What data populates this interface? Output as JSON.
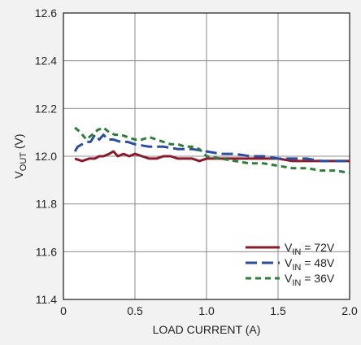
{
  "chart_data": {
    "type": "line",
    "title": "",
    "xlabel": "LOAD CURRENT (A)",
    "ylabel": {
      "main": "V",
      "sub": "OUT",
      "unit": " (V)"
    },
    "xlim": [
      0,
      2.0
    ],
    "ylim": [
      11.4,
      12.6
    ],
    "xticks": [
      {
        "value": 0,
        "label": "0"
      },
      {
        "value": 0.5,
        "label": "0.5"
      },
      {
        "value": 1.0,
        "label": "1.0"
      },
      {
        "value": 1.5,
        "label": "1.5"
      },
      {
        "value": 2.0,
        "label": "2.0"
      }
    ],
    "yticks": [
      {
        "value": 11.4,
        "label": "11.4"
      },
      {
        "value": 11.6,
        "label": "11.6"
      },
      {
        "value": 11.8,
        "label": "11.8"
      },
      {
        "value": 12.0,
        "label": "12.0"
      },
      {
        "value": 12.2,
        "label": "12.2"
      },
      {
        "value": 12.4,
        "label": "12.4"
      },
      {
        "value": 12.6,
        "label": "12.6"
      }
    ],
    "grid": true,
    "legend_position": "bottom-right",
    "series": [
      {
        "name": "VIN = 72V",
        "label_main": "V",
        "label_sub": "IN",
        "label_rest": " = 72V",
        "color": "#8b1a2b",
        "dash": "solid",
        "x": [
          0.08,
          0.13,
          0.18,
          0.22,
          0.25,
          0.28,
          0.32,
          0.35,
          0.38,
          0.42,
          0.46,
          0.5,
          0.55,
          0.6,
          0.65,
          0.7,
          0.75,
          0.8,
          0.85,
          0.9,
          0.95,
          1.0,
          1.1,
          1.2,
          1.3,
          1.4,
          1.5,
          1.6,
          1.7,
          1.8,
          1.9,
          2.0
        ],
        "y": [
          11.99,
          11.98,
          11.99,
          11.99,
          12.0,
          12.0,
          12.01,
          12.02,
          12.0,
          12.01,
          12.0,
          12.01,
          12.0,
          11.99,
          11.99,
          12.0,
          12.0,
          11.99,
          11.99,
          11.99,
          11.98,
          11.99,
          11.99,
          11.99,
          11.99,
          11.99,
          11.99,
          11.98,
          11.98,
          11.98,
          11.98,
          11.98
        ]
      },
      {
        "name": "VIN = 48V",
        "label_main": "V",
        "label_sub": "IN",
        "label_rest": " = 48V",
        "color": "#2b4f9e",
        "dash": "long",
        "x": [
          0.08,
          0.1,
          0.13,
          0.16,
          0.19,
          0.22,
          0.25,
          0.28,
          0.31,
          0.35,
          0.4,
          0.45,
          0.5,
          0.6,
          0.7,
          0.8,
          0.9,
          1.0,
          1.1,
          1.2,
          1.3,
          1.4,
          1.5,
          1.6,
          1.7,
          1.8,
          1.9,
          2.0
        ],
        "y": [
          12.02,
          12.04,
          12.05,
          12.06,
          12.06,
          12.09,
          12.07,
          12.09,
          12.07,
          12.07,
          12.06,
          12.06,
          12.05,
          12.04,
          12.04,
          12.03,
          12.03,
          12.02,
          12.01,
          12.01,
          12.0,
          12.0,
          11.99,
          11.99,
          11.99,
          11.98,
          11.98,
          11.98
        ]
      },
      {
        "name": "VIN = 36V",
        "label_main": "V",
        "label_sub": "IN",
        "label_rest": " = 36V",
        "color": "#2f7d3a",
        "dash": "short",
        "x": [
          0.08,
          0.12,
          0.16,
          0.2,
          0.24,
          0.28,
          0.32,
          0.36,
          0.4,
          0.45,
          0.5,
          0.55,
          0.6,
          0.65,
          0.7,
          0.75,
          0.8,
          0.85,
          0.9,
          0.95,
          1.0,
          1.1,
          1.2,
          1.3,
          1.4,
          1.5,
          1.6,
          1.7,
          1.8,
          1.9,
          2.0
        ],
        "y": [
          12.12,
          12.1,
          12.07,
          12.09,
          12.11,
          12.12,
          12.1,
          12.09,
          12.09,
          12.08,
          12.07,
          12.07,
          12.08,
          12.07,
          12.06,
          12.05,
          12.05,
          12.04,
          12.04,
          12.03,
          12.0,
          11.99,
          11.98,
          11.97,
          11.97,
          11.96,
          11.95,
          11.95,
          11.94,
          11.94,
          11.93
        ]
      }
    ]
  }
}
